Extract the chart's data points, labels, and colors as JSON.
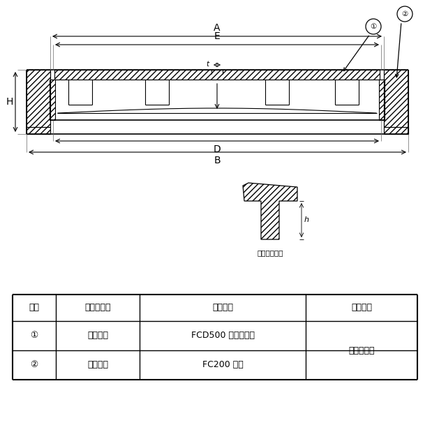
{
  "bg_color": "#ffffff",
  "line_color": "#000000",
  "table_headers": [
    "部番",
    "部　品　名",
    "材　　質",
    "表面処理"
  ],
  "row1_col1": "①",
  "row1_col2": "ふ　　た",
  "row1_col3": "FCD500 ダクタイル",
  "row1_col4": "锈止め塗装",
  "row2_col1": "②",
  "row2_col2": "受　　枠",
  "row2_col3": "FC200 镃鉄",
  "small_label": "ふた端部寸法",
  "dim_t": "t",
  "dim_A": "A",
  "dim_E": "E",
  "dim_D": "D",
  "dim_B": "B",
  "dim_H": "H",
  "dim_h": "h",
  "circ1": "①",
  "circ2": "②"
}
